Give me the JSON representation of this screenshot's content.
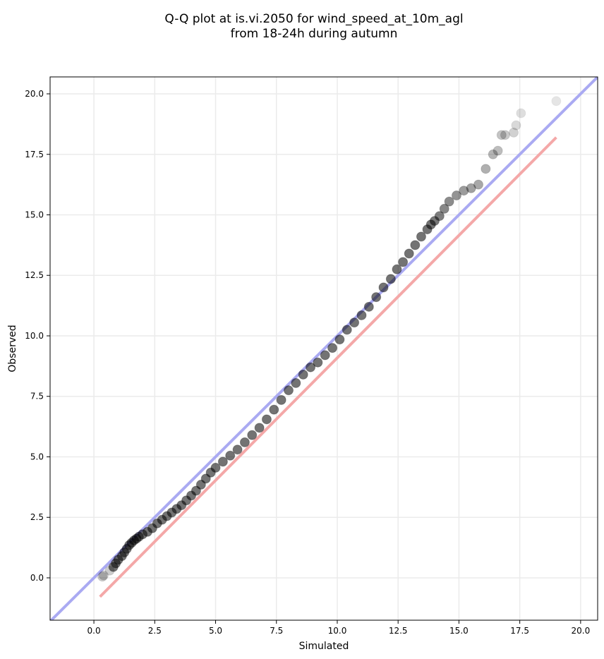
{
  "chart_data": {
    "type": "scatter",
    "title_lines": [
      "Q-Q plot at is.vi.2050 for wind_speed_at_10m_agl",
      "from 18-24h during autumn"
    ],
    "xlabel": "Simulated",
    "ylabel": "Observed",
    "xlim": [
      -1.8,
      20.7
    ],
    "ylim": [
      -1.75,
      20.7
    ],
    "xticks": [
      0.0,
      2.5,
      5.0,
      7.5,
      10.0,
      12.5,
      15.0,
      17.5,
      20.0
    ],
    "yticks": [
      0.0,
      2.5,
      5.0,
      7.5,
      10.0,
      12.5,
      15.0,
      17.5,
      20.0
    ],
    "xtick_labels": [
      "0.0",
      "2.5",
      "5.0",
      "7.5",
      "10.0",
      "12.5",
      "15.0",
      "17.5",
      "20.0"
    ],
    "ytick_labels": [
      "0.0",
      "2.5",
      "5.0",
      "7.5",
      "10.0",
      "12.5",
      "15.0",
      "17.5",
      "20.0"
    ],
    "grid": true,
    "reference_line": {
      "color": "#aaaaf2",
      "slope": 1,
      "intercept": 0
    },
    "fit_line": {
      "color": "#f4a8a8",
      "x": [
        0.25,
        19.0
      ],
      "y": [
        -0.78,
        18.2
      ]
    },
    "series": [
      {
        "color": "#000000",
        "x": [
          0.35,
          0.4,
          0.65,
          0.8,
          0.9,
          1.0,
          1.15,
          1.25,
          1.35,
          1.45,
          1.55,
          1.65,
          1.75,
          1.85,
          2.0,
          2.2,
          2.4,
          2.6,
          2.8,
          3.0,
          3.2,
          3.4,
          3.6,
          3.8,
          4.0,
          4.2,
          4.4,
          4.6,
          4.8,
          5.0,
          5.3,
          5.6,
          5.9,
          6.2,
          6.5,
          6.8,
          7.1,
          7.4,
          7.7,
          8.0,
          8.3,
          8.6,
          8.9,
          9.2,
          9.5,
          9.8,
          10.1,
          10.4,
          10.7,
          11.0,
          11.3,
          11.6,
          11.9,
          12.2,
          12.45,
          12.7,
          12.95,
          13.2,
          13.45,
          13.7,
          13.85,
          14.0,
          14.2,
          14.4,
          14.6,
          14.9,
          15.2,
          15.5,
          15.8,
          16.1,
          16.4,
          16.6,
          16.75,
          16.9,
          17.25,
          17.35,
          17.55,
          19.0
        ],
        "y": [
          0.05,
          0.1,
          0.3,
          0.45,
          0.6,
          0.75,
          0.9,
          1.05,
          1.2,
          1.35,
          1.45,
          1.55,
          1.62,
          1.7,
          1.8,
          1.9,
          2.05,
          2.25,
          2.4,
          2.55,
          2.7,
          2.85,
          3.0,
          3.2,
          3.4,
          3.6,
          3.85,
          4.1,
          4.35,
          4.55,
          4.8,
          5.05,
          5.3,
          5.6,
          5.9,
          6.2,
          6.55,
          6.95,
          7.35,
          7.75,
          8.05,
          8.4,
          8.7,
          8.9,
          9.2,
          9.5,
          9.85,
          10.25,
          10.55,
          10.85,
          11.2,
          11.6,
          12.0,
          12.35,
          12.75,
          13.05,
          13.4,
          13.75,
          14.1,
          14.4,
          14.6,
          14.75,
          14.95,
          15.25,
          15.55,
          15.8,
          16.0,
          16.1,
          16.25,
          16.9,
          17.5,
          17.65,
          18.3,
          18.3,
          18.4,
          18.7,
          19.2,
          19.7
        ]
      }
    ]
  }
}
